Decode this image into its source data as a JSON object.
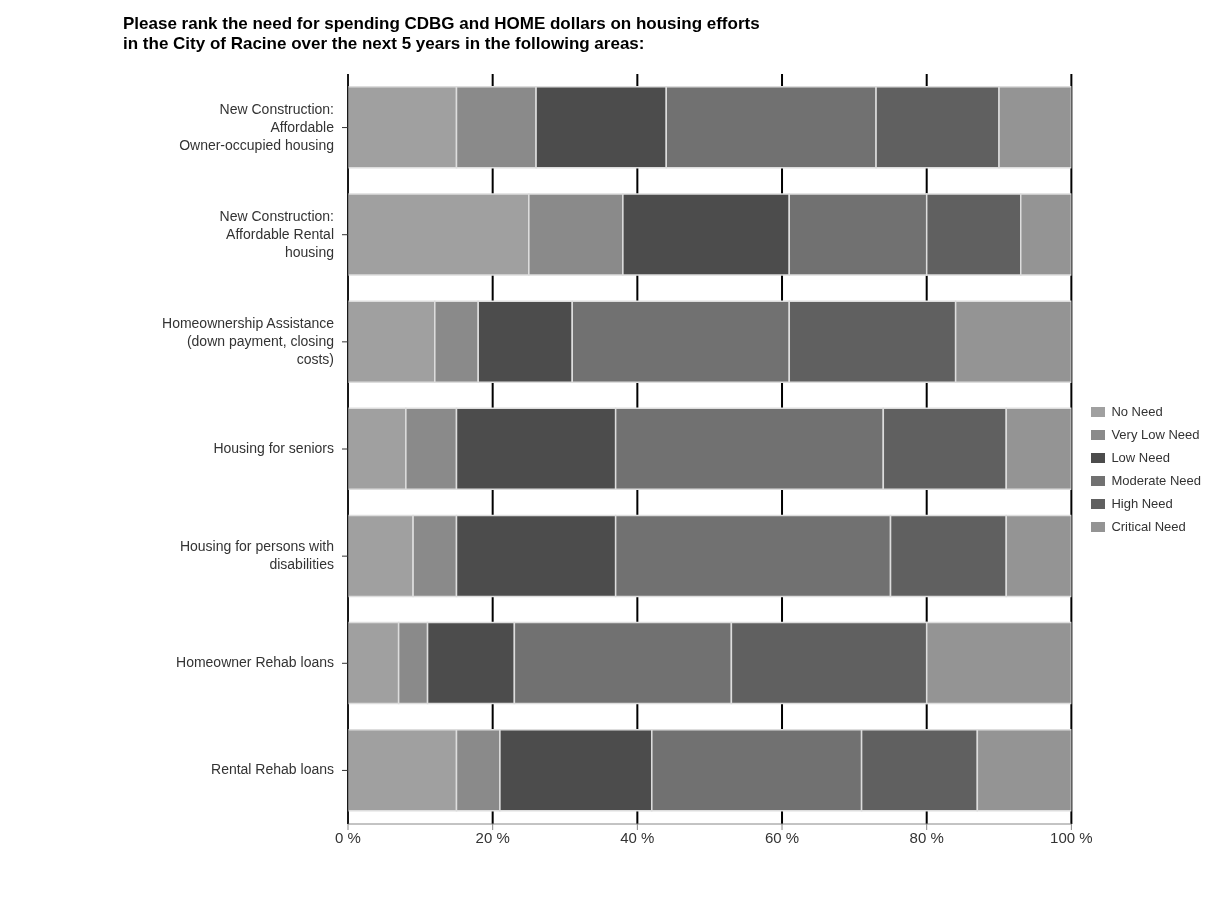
{
  "chart_data": {
    "type": "bar",
    "title": "Please rank the need for spending CDBG and HOME dollars on housing efforts in the City of Racine over the next 5 years in the following areas:",
    "orientation": "horizontal",
    "stacked": true,
    "categories": [
      "New Construction: Affordable Owner-occupied housing",
      "New Construction: Affordable Rental housing",
      "Homeownership Assistance (down payment, closing costs)",
      "Housing for seniors",
      "Housing for persons with disabilities",
      "Homeowner Rehab loans",
      "Rental Rehab loans"
    ],
    "series": [
      {
        "name": "No Need",
        "color": "#a0a0a0",
        "values": [
          15,
          25,
          12,
          8,
          9,
          7,
          15
        ]
      },
      {
        "name": "Very Low Need",
        "color": "#8a8a8a",
        "values": [
          11,
          13,
          6,
          7,
          6,
          4,
          6
        ]
      },
      {
        "name": "Low Need",
        "color": "#4c4c4c",
        "values": [
          18,
          23,
          13,
          22,
          22,
          12,
          21
        ]
      },
      {
        "name": "Moderate Need",
        "color": "#717171",
        "values": [
          29,
          19,
          30,
          37,
          38,
          30,
          29
        ]
      },
      {
        "name": "High Need",
        "color": "#606060",
        "values": [
          17,
          13,
          23,
          17,
          16,
          27,
          16
        ]
      },
      {
        "name": "Critical Need",
        "color": "#949494",
        "values": [
          10,
          7,
          16,
          9,
          9,
          20,
          13
        ]
      }
    ],
    "xlim": [
      0,
      100
    ],
    "xticks": [
      {
        "value": 0,
        "label": "0 %"
      },
      {
        "value": 20,
        "label": "20 %"
      },
      {
        "value": 40,
        "label": "40 %"
      },
      {
        "value": 60,
        "label": "60 %"
      },
      {
        "value": 80,
        "label": "80 %"
      },
      {
        "value": 100,
        "label": "100 %"
      }
    ],
    "grid": "x",
    "legend": "right"
  }
}
